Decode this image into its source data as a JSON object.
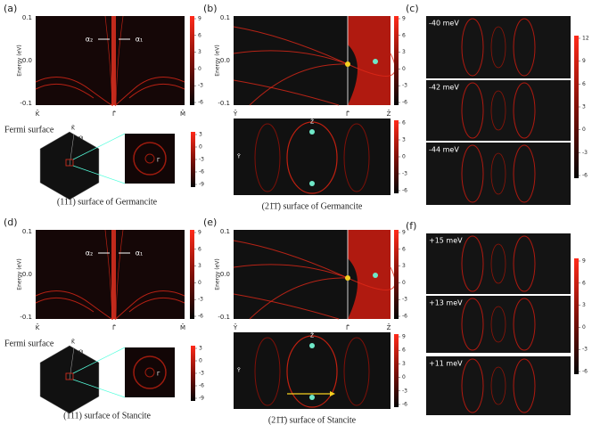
{
  "panels": {
    "a": {
      "label": "(a)",
      "energy": {
        "ylabel": "Energy (eV)",
        "yticks": [
          "0.1",
          "0.0",
          "-0.1"
        ],
        "xticks": [
          "K̄",
          "Γ̄",
          "M̄"
        ],
        "markers": [
          "α₂",
          "α₁"
        ],
        "colorbar": [
          "9",
          "6",
          "3",
          "0",
          "-3",
          "-6"
        ]
      },
      "fermi": {
        "title": "Fermi surface",
        "points": [
          "K̄",
          "M̄",
          "Γ̄"
        ],
        "colorbar": [
          "3",
          "0",
          "-3",
          "-6",
          "-9"
        ]
      },
      "caption": "(111) surface of Germancite"
    },
    "b": {
      "label": "(b)",
      "energy": {
        "ylabel": "Energy (eV)",
        "yticks": [
          "0.1",
          "0.0",
          "-0.1"
        ],
        "xticks": [
          "Ȳ",
          "Γ̄",
          "Z̄"
        ],
        "colorbar": [
          "9",
          "6",
          "3",
          "0",
          "-3",
          "-6"
        ]
      },
      "fermi": {
        "points": [
          "Z̄",
          "Ȳ"
        ],
        "colorbar": [
          "6",
          "3",
          "0",
          "-3",
          "-6"
        ]
      },
      "caption": "(21̄1̄) surface of Germancite"
    },
    "c": {
      "label": "(c)",
      "slices": [
        "-40 meV",
        "-42 meV",
        "-44 meV"
      ],
      "colorbar": [
        "12",
        "9",
        "6",
        "3",
        "0",
        "-3",
        "-6"
      ]
    },
    "d": {
      "label": "(d)",
      "energy": {
        "ylabel": "Energy (eV)",
        "yticks": [
          "0.1",
          "0.0",
          "-0.1"
        ],
        "xticks": [
          "K̄",
          "Γ̄",
          "M̄"
        ],
        "markers": [
          "α₂",
          "α₁"
        ],
        "colorbar": [
          "9",
          "6",
          "3",
          "0",
          "-3",
          "-6"
        ]
      },
      "fermi": {
        "title": "Fermi surface",
        "points": [
          "K̄",
          "M̄",
          "Γ̄"
        ],
        "colorbar": [
          "3",
          "0",
          "-3",
          "-6",
          "-9"
        ]
      },
      "caption": "(111) surface of Stancite"
    },
    "e": {
      "label": "(e)",
      "energy": {
        "ylabel": "Energy (eV)",
        "yticks": [
          "0.1",
          "0.0",
          "-0.1"
        ],
        "xticks": [
          "Ȳ",
          "Γ̄",
          "Z̄"
        ],
        "colorbar": [
          "9",
          "6",
          "3",
          "0",
          "-3",
          "-6"
        ]
      },
      "fermi": {
        "points": [
          "Z̄",
          "Ȳ"
        ],
        "colorbar": [
          "9",
          "6",
          "3",
          "0",
          "-3",
          "-6"
        ]
      },
      "caption": "(21̄1̄) surface of Stancite"
    },
    "f": {
      "label": "(f)",
      "slices": [
        "+15 meV",
        "+13 meV",
        "+11 meV"
      ],
      "colorbar": [
        "9",
        "6",
        "3",
        "0",
        "-3",
        "-6"
      ]
    }
  }
}
